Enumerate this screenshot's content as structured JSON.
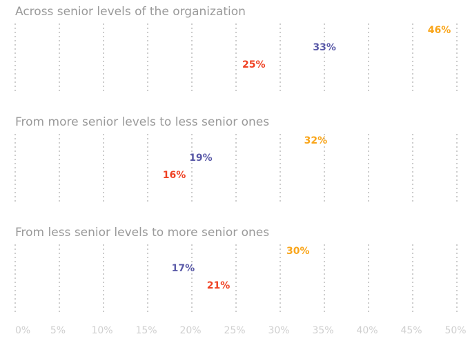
{
  "chart_data": {
    "type": "bar",
    "orientation": "horizontal",
    "colors": [
      "#f9a51a",
      "#5a5aa8",
      "#ef4123"
    ],
    "groups": [
      {
        "title": "Across senior levels of the organization",
        "values": [
          46,
          33,
          25
        ],
        "value_labels": [
          "46%",
          "33%",
          "25%"
        ]
      },
      {
        "title": "From more senior levels to less senior ones",
        "values": [
          32,
          19,
          16
        ],
        "value_labels": [
          "32%",
          "19%",
          "16%"
        ]
      },
      {
        "title": "From less senior levels to more senior ones",
        "values": [
          30,
          17,
          21
        ],
        "value_labels": [
          "30%",
          "17%",
          "21%"
        ]
      }
    ],
    "xlim": [
      0,
      50
    ],
    "xticks": [
      {
        "value": 0,
        "label": "0%"
      },
      {
        "value": 5,
        "label": "5%"
      },
      {
        "value": 10,
        "label": "10%"
      },
      {
        "value": 15,
        "label": "15%"
      },
      {
        "value": 20,
        "label": "20%"
      },
      {
        "value": 25,
        "label": "25%"
      },
      {
        "value": 30,
        "label": "30%"
      },
      {
        "value": 35,
        "label": "35%"
      },
      {
        "value": 40,
        "label": "40%"
      },
      {
        "value": 45,
        "label": "45%"
      },
      {
        "value": 50,
        "label": "50%"
      }
    ],
    "grid": true
  }
}
